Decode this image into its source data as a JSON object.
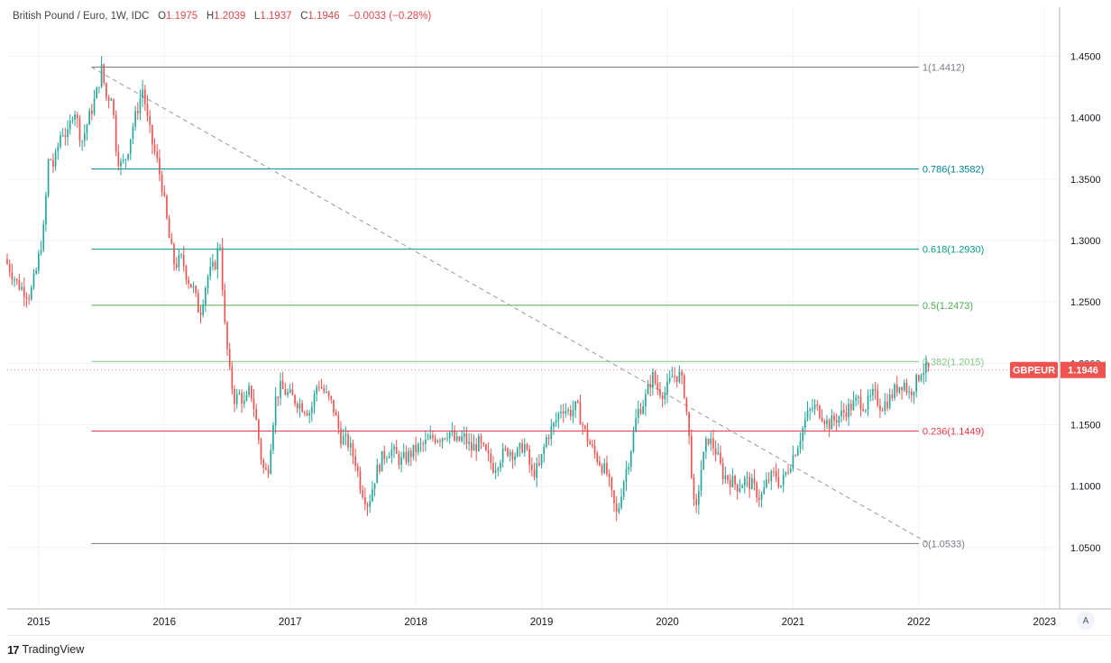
{
  "legend": {
    "symbol": "British Pound / Euro, 1W, IDC",
    "open_label": "O",
    "open": "1.1975",
    "high_label": "H",
    "high": "1.2039",
    "low_label": "L",
    "low": "1.1937",
    "close_label": "C",
    "close": "1.1946",
    "change": "−0.0033 (−0.28%)"
  },
  "footer": {
    "logo_text": "17",
    "brand": "TradingView"
  },
  "auto_button": "A",
  "colors": {
    "up": "#26a69a",
    "down": "#ef5350",
    "price_tag": "#ef5350",
    "level_0": "#787b86",
    "level_0236": "#f23645",
    "level_0382": "#81c784",
    "level_05": "#4caf50",
    "level_0618": "#089981",
    "level_0786": "#00838f",
    "level_1": "#787b86"
  },
  "chart_data": {
    "type": "candlestick",
    "title": "British Pound / Euro, 1W, IDC",
    "ylim": [
      1.0,
      1.49
    ],
    "y_ticks": [
      "1.4500",
      "1.4000",
      "1.3500",
      "1.3000",
      "1.2500",
      "1.2000",
      "1.1500",
      "1.1000",
      "1.0500"
    ],
    "y_tick_values": [
      1.45,
      1.4,
      1.35,
      1.3,
      1.25,
      1.2,
      1.15,
      1.1,
      1.05
    ],
    "x_ticks": [
      "2015",
      "2016",
      "2017",
      "2018",
      "2019",
      "2020",
      "2021",
      "2022",
      "2023"
    ],
    "x_tick_years": [
      2015,
      2016,
      2017,
      2018,
      2019,
      2020,
      2021,
      2022,
      2023
    ],
    "xlim_years": [
      2014.75,
      2023.12
    ],
    "grid": true,
    "price_tag": {
      "symbol": "GBPEUR",
      "value": "1.1946",
      "y": 1.1946
    },
    "fib_retracement": {
      "start_year": 2015.42,
      "end_year": 2022.0,
      "trend_from": {
        "year": 2015.42,
        "price": 1.4412
      },
      "trend_to": {
        "year": 2022.08,
        "price": 1.0533
      },
      "levels": [
        {
          "ratio": 1,
          "price": 1.4412,
          "label": "1(1.4412)"
        },
        {
          "ratio": 0.786,
          "price": 1.3582,
          "label": "0.786(1.3582)"
        },
        {
          "ratio": 0.618,
          "price": 1.293,
          "label": "0.618(1.2930)"
        },
        {
          "ratio": 0.5,
          "price": 1.2473,
          "label": "0.5(1.2473)"
        },
        {
          "ratio": 0.382,
          "price": 1.2015,
          "label": "0.382(1.2015)"
        },
        {
          "ratio": 0.236,
          "price": 1.1449,
          "label": "0.236(1.1449)"
        },
        {
          "ratio": 0,
          "price": 1.0533,
          "label": "0(1.0533)"
        }
      ]
    },
    "price_path": [
      [
        2014.75,
        1.285
      ],
      [
        2014.85,
        1.265
      ],
      [
        2014.95,
        1.255
      ],
      [
        2015.0,
        1.275
      ],
      [
        2015.06,
        1.31
      ],
      [
        2015.1,
        1.37
      ],
      [
        2015.14,
        1.36
      ],
      [
        2015.2,
        1.39
      ],
      [
        2015.25,
        1.385
      ],
      [
        2015.3,
        1.41
      ],
      [
        2015.36,
        1.38
      ],
      [
        2015.42,
        1.4
      ],
      [
        2015.48,
        1.42
      ],
      [
        2015.52,
        1.44
      ],
      [
        2015.56,
        1.415
      ],
      [
        2015.6,
        1.42
      ],
      [
        2015.64,
        1.37
      ],
      [
        2015.68,
        1.36
      ],
      [
        2015.72,
        1.37
      ],
      [
        2015.76,
        1.39
      ],
      [
        2015.8,
        1.405
      ],
      [
        2015.85,
        1.425
      ],
      [
        2015.88,
        1.4
      ],
      [
        2015.92,
        1.38
      ],
      [
        2015.96,
        1.365
      ],
      [
        2016.0,
        1.345
      ],
      [
        2016.06,
        1.3
      ],
      [
        2016.1,
        1.28
      ],
      [
        2016.16,
        1.285
      ],
      [
        2016.2,
        1.27
      ],
      [
        2016.25,
        1.26
      ],
      [
        2016.3,
        1.24
      ],
      [
        2016.36,
        1.27
      ],
      [
        2016.42,
        1.28
      ],
      [
        2016.46,
        1.3
      ],
      [
        2016.5,
        1.23
      ],
      [
        2016.54,
        1.19
      ],
      [
        2016.58,
        1.17
      ],
      [
        2016.62,
        1.175
      ],
      [
        2016.66,
        1.165
      ],
      [
        2016.7,
        1.18
      ],
      [
        2016.74,
        1.16
      ],
      [
        2016.8,
        1.115
      ],
      [
        2016.84,
        1.11
      ],
      [
        2016.9,
        1.17
      ],
      [
        2016.94,
        1.18
      ],
      [
        2017.0,
        1.175
      ],
      [
        2017.06,
        1.17
      ],
      [
        2017.12,
        1.165
      ],
      [
        2017.18,
        1.16
      ],
      [
        2017.24,
        1.185
      ],
      [
        2017.3,
        1.175
      ],
      [
        2017.36,
        1.165
      ],
      [
        2017.42,
        1.14
      ],
      [
        2017.48,
        1.135
      ],
      [
        2017.54,
        1.12
      ],
      [
        2017.58,
        1.1
      ],
      [
        2017.64,
        1.085
      ],
      [
        2017.7,
        1.11
      ],
      [
        2017.76,
        1.125
      ],
      [
        2017.82,
        1.13
      ],
      [
        2017.9,
        1.12
      ],
      [
        2017.96,
        1.125
      ],
      [
        2018.02,
        1.13
      ],
      [
        2018.1,
        1.135
      ],
      [
        2018.16,
        1.14
      ],
      [
        2018.22,
        1.14
      ],
      [
        2018.28,
        1.145
      ],
      [
        2018.34,
        1.135
      ],
      [
        2018.4,
        1.14
      ],
      [
        2018.46,
        1.13
      ],
      [
        2018.52,
        1.135
      ],
      [
        2018.58,
        1.125
      ],
      [
        2018.64,
        1.115
      ],
      [
        2018.7,
        1.125
      ],
      [
        2018.76,
        1.13
      ],
      [
        2018.82,
        1.125
      ],
      [
        2018.88,
        1.135
      ],
      [
        2018.94,
        1.11
      ],
      [
        2019.0,
        1.115
      ],
      [
        2019.06,
        1.14
      ],
      [
        2019.12,
        1.15
      ],
      [
        2019.18,
        1.165
      ],
      [
        2019.24,
        1.16
      ],
      [
        2019.3,
        1.165
      ],
      [
        2019.36,
        1.145
      ],
      [
        2019.42,
        1.13
      ],
      [
        2019.48,
        1.12
      ],
      [
        2019.54,
        1.11
      ],
      [
        2019.58,
        1.09
      ],
      [
        2019.62,
        1.075
      ],
      [
        2019.66,
        1.1
      ],
      [
        2019.72,
        1.125
      ],
      [
        2019.78,
        1.16
      ],
      [
        2019.84,
        1.17
      ],
      [
        2019.9,
        1.19
      ],
      [
        2019.94,
        1.18
      ],
      [
        2020.0,
        1.175
      ],
      [
        2020.06,
        1.19
      ],
      [
        2020.12,
        1.19
      ],
      [
        2020.16,
        1.175
      ],
      [
        2020.2,
        1.13
      ],
      [
        2020.24,
        1.07
      ],
      [
        2020.28,
        1.11
      ],
      [
        2020.34,
        1.14
      ],
      [
        2020.4,
        1.13
      ],
      [
        2020.46,
        1.11
      ],
      [
        2020.52,
        1.105
      ],
      [
        2020.58,
        1.1
      ],
      [
        2020.64,
        1.105
      ],
      [
        2020.7,
        1.1
      ],
      [
        2020.76,
        1.09
      ],
      [
        2020.82,
        1.105
      ],
      [
        2020.88,
        1.11
      ],
      [
        2020.92,
        1.1
      ],
      [
        2020.96,
        1.11
      ],
      [
        2021.0,
        1.12
      ],
      [
        2021.06,
        1.135
      ],
      [
        2021.12,
        1.155
      ],
      [
        2021.18,
        1.165
      ],
      [
        2021.24,
        1.16
      ],
      [
        2021.3,
        1.15
      ],
      [
        2021.36,
        1.155
      ],
      [
        2021.42,
        1.16
      ],
      [
        2021.48,
        1.165
      ],
      [
        2021.54,
        1.17
      ],
      [
        2021.6,
        1.165
      ],
      [
        2021.66,
        1.175
      ],
      [
        2021.72,
        1.165
      ],
      [
        2021.78,
        1.17
      ],
      [
        2021.84,
        1.18
      ],
      [
        2021.9,
        1.185
      ],
      [
        2021.94,
        1.175
      ],
      [
        2022.0,
        1.185
      ],
      [
        2022.04,
        1.195
      ],
      [
        2022.08,
        1.1946
      ]
    ]
  }
}
